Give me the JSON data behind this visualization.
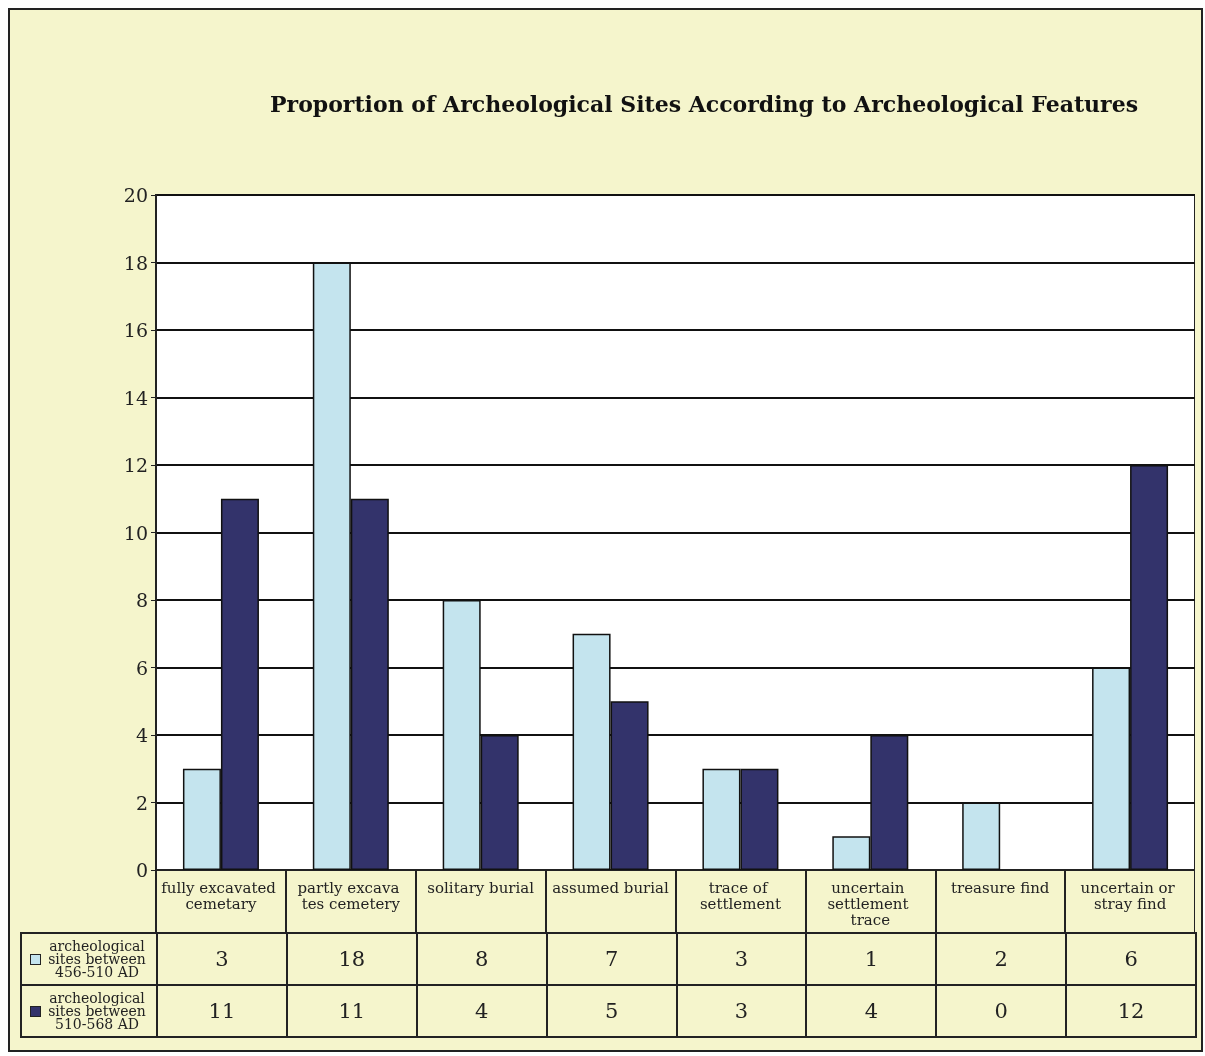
{
  "chart_data": {
    "type": "bar",
    "title": "Proportion of Archeological Sites According to Archeological Features",
    "categories": [
      "fully excavated cemetary",
      "partly excava tes cemetery",
      "solitary burial",
      "assumed burial",
      "trace of settlement",
      "uncertain settlement trace",
      "treasure find",
      "uncertain or stray find"
    ],
    "series": [
      {
        "name": "archeological sites between 456-510 AD",
        "color": "#c4e4ee",
        "values": [
          3,
          18,
          8,
          7,
          3,
          1,
          2,
          6
        ]
      },
      {
        "name": "archeological sites between 510-568 AD",
        "color": "#33336b",
        "values": [
          11,
          11,
          4,
          5,
          3,
          4,
          0,
          12
        ]
      }
    ],
    "ylim": [
      0,
      20
    ],
    "yticks": [
      0,
      2,
      4,
      6,
      8,
      10,
      12,
      14,
      16,
      18,
      20
    ],
    "grid": "y",
    "legend": "bottom",
    "data_labels": true
  }
}
